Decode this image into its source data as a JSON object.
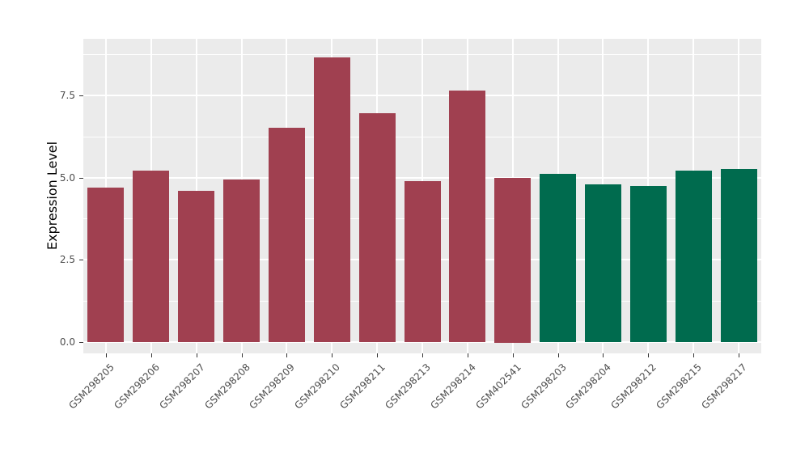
{
  "chart_data": {
    "type": "bar",
    "title": "",
    "xlabel": "",
    "ylabel": "Expression Level",
    "ylim": [
      0,
      9.2
    ],
    "yticks": [
      0,
      2.5,
      5,
      7.5
    ],
    "ytick_labels": [
      "0.0",
      "2.5",
      "5.0",
      "7.5"
    ],
    "minor_gridlines": [
      1.25,
      3.75,
      6.25,
      8.75
    ],
    "grid": true,
    "legend_position": "none",
    "panel_bg": "#EBEBEB",
    "grid_color": "#FFFFFF",
    "categories": [
      "GSM298205",
      "GSM298206",
      "GSM298207",
      "GSM298208",
      "GSM298209",
      "GSM298210",
      "GSM298211",
      "GSM298213",
      "GSM298214",
      "GSM402541",
      "GSM298203",
      "GSM298204",
      "GSM298212",
      "GSM298215",
      "GSM298217"
    ],
    "values": [
      4.7,
      5.2,
      4.6,
      4.95,
      6.5,
      8.65,
      6.95,
      4.9,
      7.65,
      5.0,
      5.1,
      4.8,
      4.75,
      5.2,
      5.25
    ],
    "bar_groups": [
      "groupA",
      "groupA",
      "groupA",
      "groupA",
      "groupA",
      "groupA",
      "groupA",
      "groupA",
      "groupA",
      "groupA",
      "groupB",
      "groupB",
      "groupB",
      "groupB",
      "groupB"
    ],
    "group_colors": {
      "groupA": "#A04050",
      "groupB": "#006B4E"
    }
  }
}
